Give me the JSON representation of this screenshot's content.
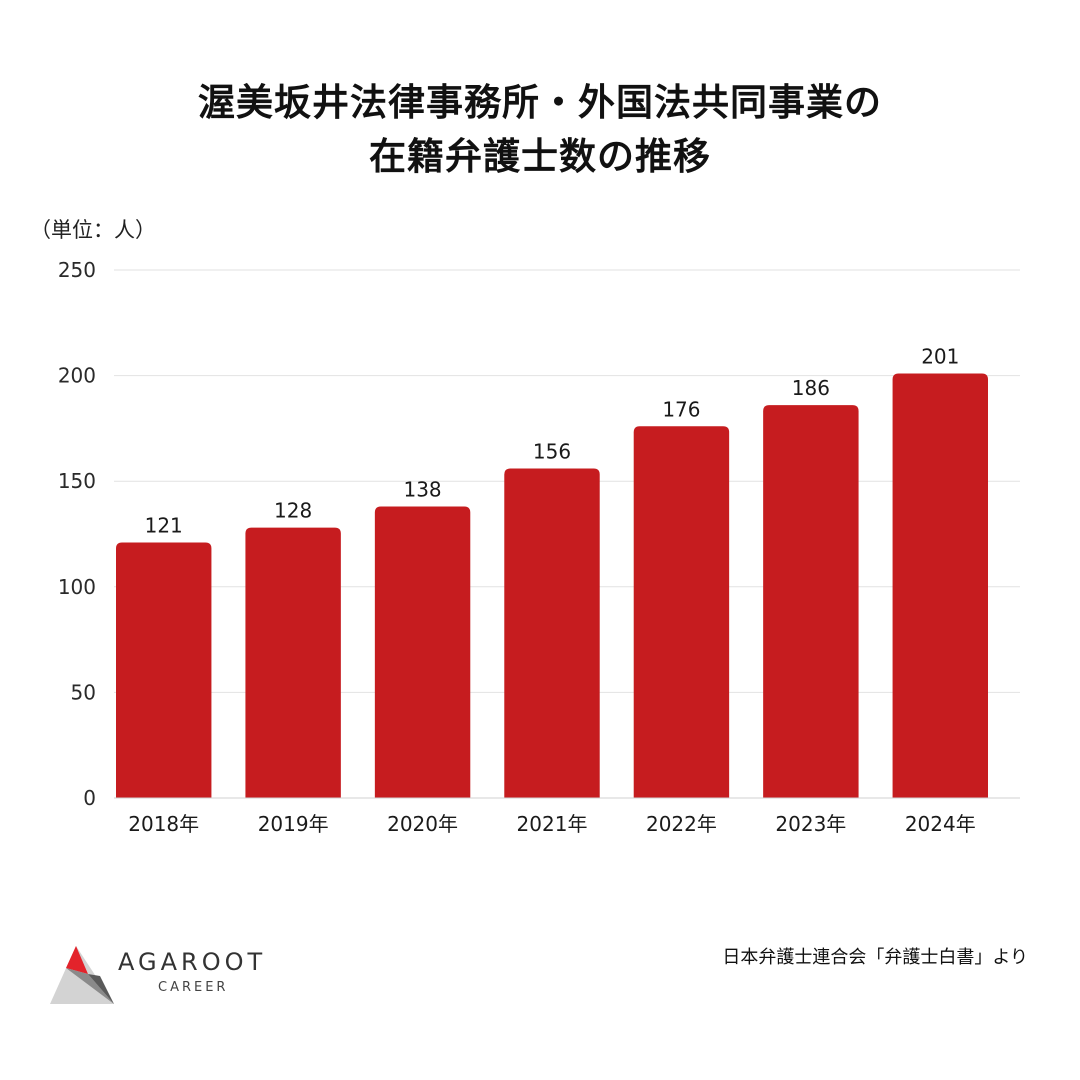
{
  "title": {
    "line1": "渥美坂井法律事務所・外国法共同事業の",
    "line2": "在籍弁護士数の推移"
  },
  "unit_label": "（単位：人）",
  "source": "日本弁護士連合会「弁護士白書」より",
  "logo": {
    "word": "AGAROOT",
    "sub": "CAREER"
  },
  "colors": {
    "bar": "#c61c1f",
    "grid": "#e2e2e2",
    "text": "#1a1a1a"
  },
  "chart_data": {
    "type": "bar",
    "categories": [
      "2018年",
      "2019年",
      "2020年",
      "2021年",
      "2022年",
      "2023年",
      "2024年"
    ],
    "values": [
      121,
      128,
      138,
      156,
      176,
      186,
      201
    ],
    "ylabel": "（単位：人）",
    "ylim": [
      0,
      250
    ],
    "yticks": [
      0,
      50,
      100,
      150,
      200,
      250
    ],
    "grid": true,
    "data_labels": true
  }
}
